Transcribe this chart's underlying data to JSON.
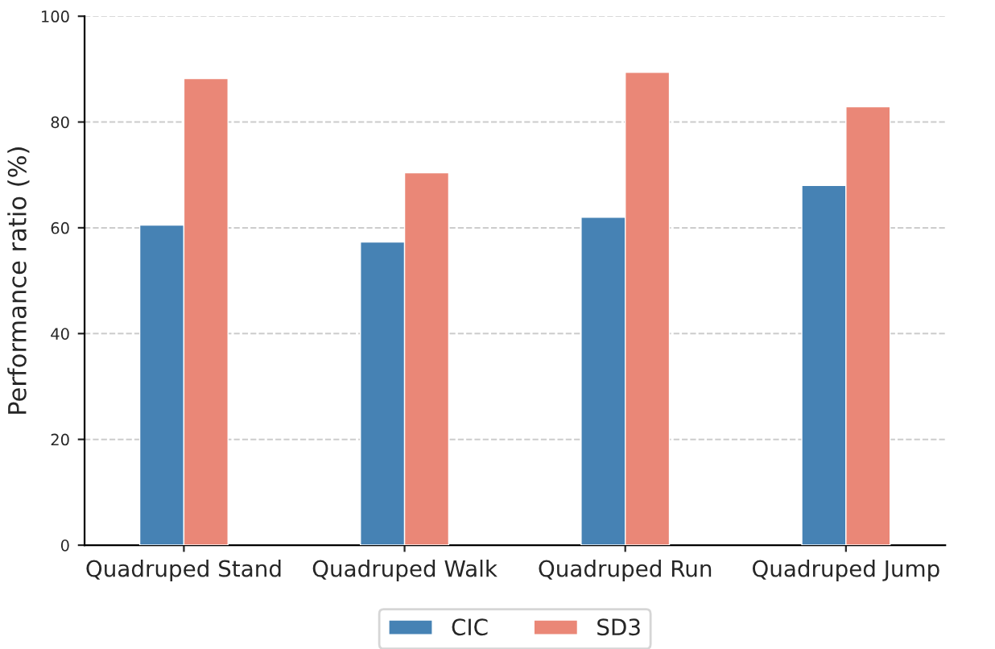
{
  "chart_data": {
    "type": "bar",
    "ylabel": "Performance ratio (%)",
    "categories": [
      "Quadruped Stand",
      "Quadruped Walk",
      "Quadruped Run",
      "Quadruped Jump"
    ],
    "series": [
      {
        "name": "CIC",
        "color": "#4682b4",
        "values": [
          60.5,
          57.3,
          62.0,
          68.0
        ]
      },
      {
        "name": "SD3",
        "color": "#ea8777",
        "values": [
          88.2,
          70.4,
          89.4,
          82.9
        ]
      }
    ],
    "ylim": [
      0,
      100
    ],
    "yticks": [
      0,
      20,
      40,
      60,
      80,
      100
    ],
    "grid": "y",
    "legend": "bottom"
  }
}
